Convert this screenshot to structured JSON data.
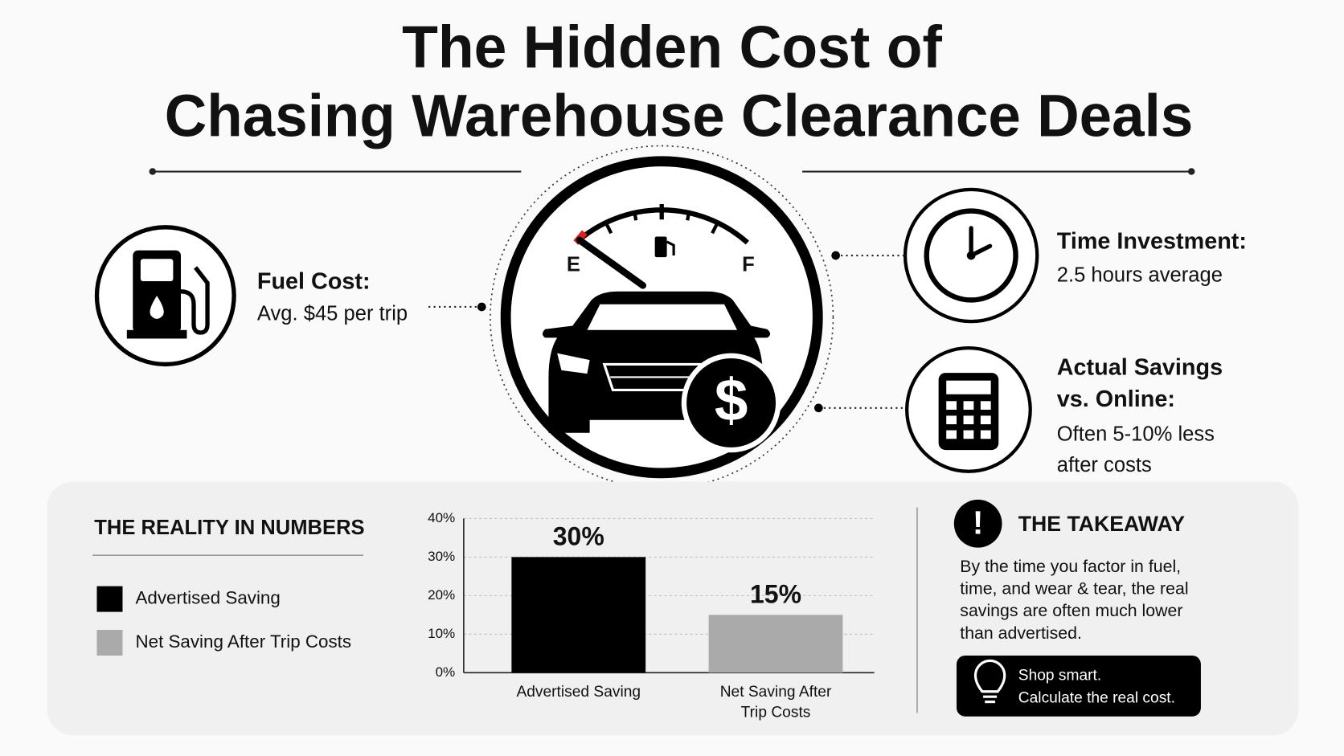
{
  "header": {
    "title_lines": [
      "The Hidden Cost of",
      "Chasing Warehouse Clearance Deals"
    ]
  },
  "gauge": {
    "empty_label": "E",
    "full_label": "F",
    "currency_symbol": "$"
  },
  "fuel": {
    "label": "Fuel Cost:",
    "text": "Avg. $45 per trip"
  },
  "time": {
    "label": "Time Investment:",
    "text": "2.5 hours average"
  },
  "savings": {
    "label_lines": [
      "Actual Savings",
      "vs. Online:"
    ],
    "text_lines": [
      "Often 5-10% less",
      "after costs"
    ]
  },
  "reality": {
    "title": "THE REALITY IN NUMBERS"
  },
  "chart_data": {
    "type": "bar",
    "categories": [
      "Advertised Saving",
      "Net Saving After Trip Costs"
    ],
    "values": [
      30,
      15
    ],
    "value_labels": [
      "30%",
      "15%"
    ],
    "colors": [
      "#000000",
      "#aaaaaa"
    ],
    "ylim": [
      0,
      40
    ],
    "yticks": [
      {
        "value": 0,
        "label": "0%"
      },
      {
        "value": 10,
        "label": "10%"
      },
      {
        "value": 20,
        "label": "20%"
      },
      {
        "value": 30,
        "label": "30%"
      },
      {
        "value": 40,
        "label": "40%"
      }
    ],
    "grid": true,
    "legend": "left"
  },
  "takeaway": {
    "icon": "!",
    "title": "THE TAKEAWAY",
    "body_lines": [
      "By the time you factor in fuel,",
      "time, and wear & tear, the real",
      "savings are often much lower",
      "than advertised."
    ],
    "button_lines": [
      "Shop smart.",
      "Calculate the real cost."
    ]
  }
}
